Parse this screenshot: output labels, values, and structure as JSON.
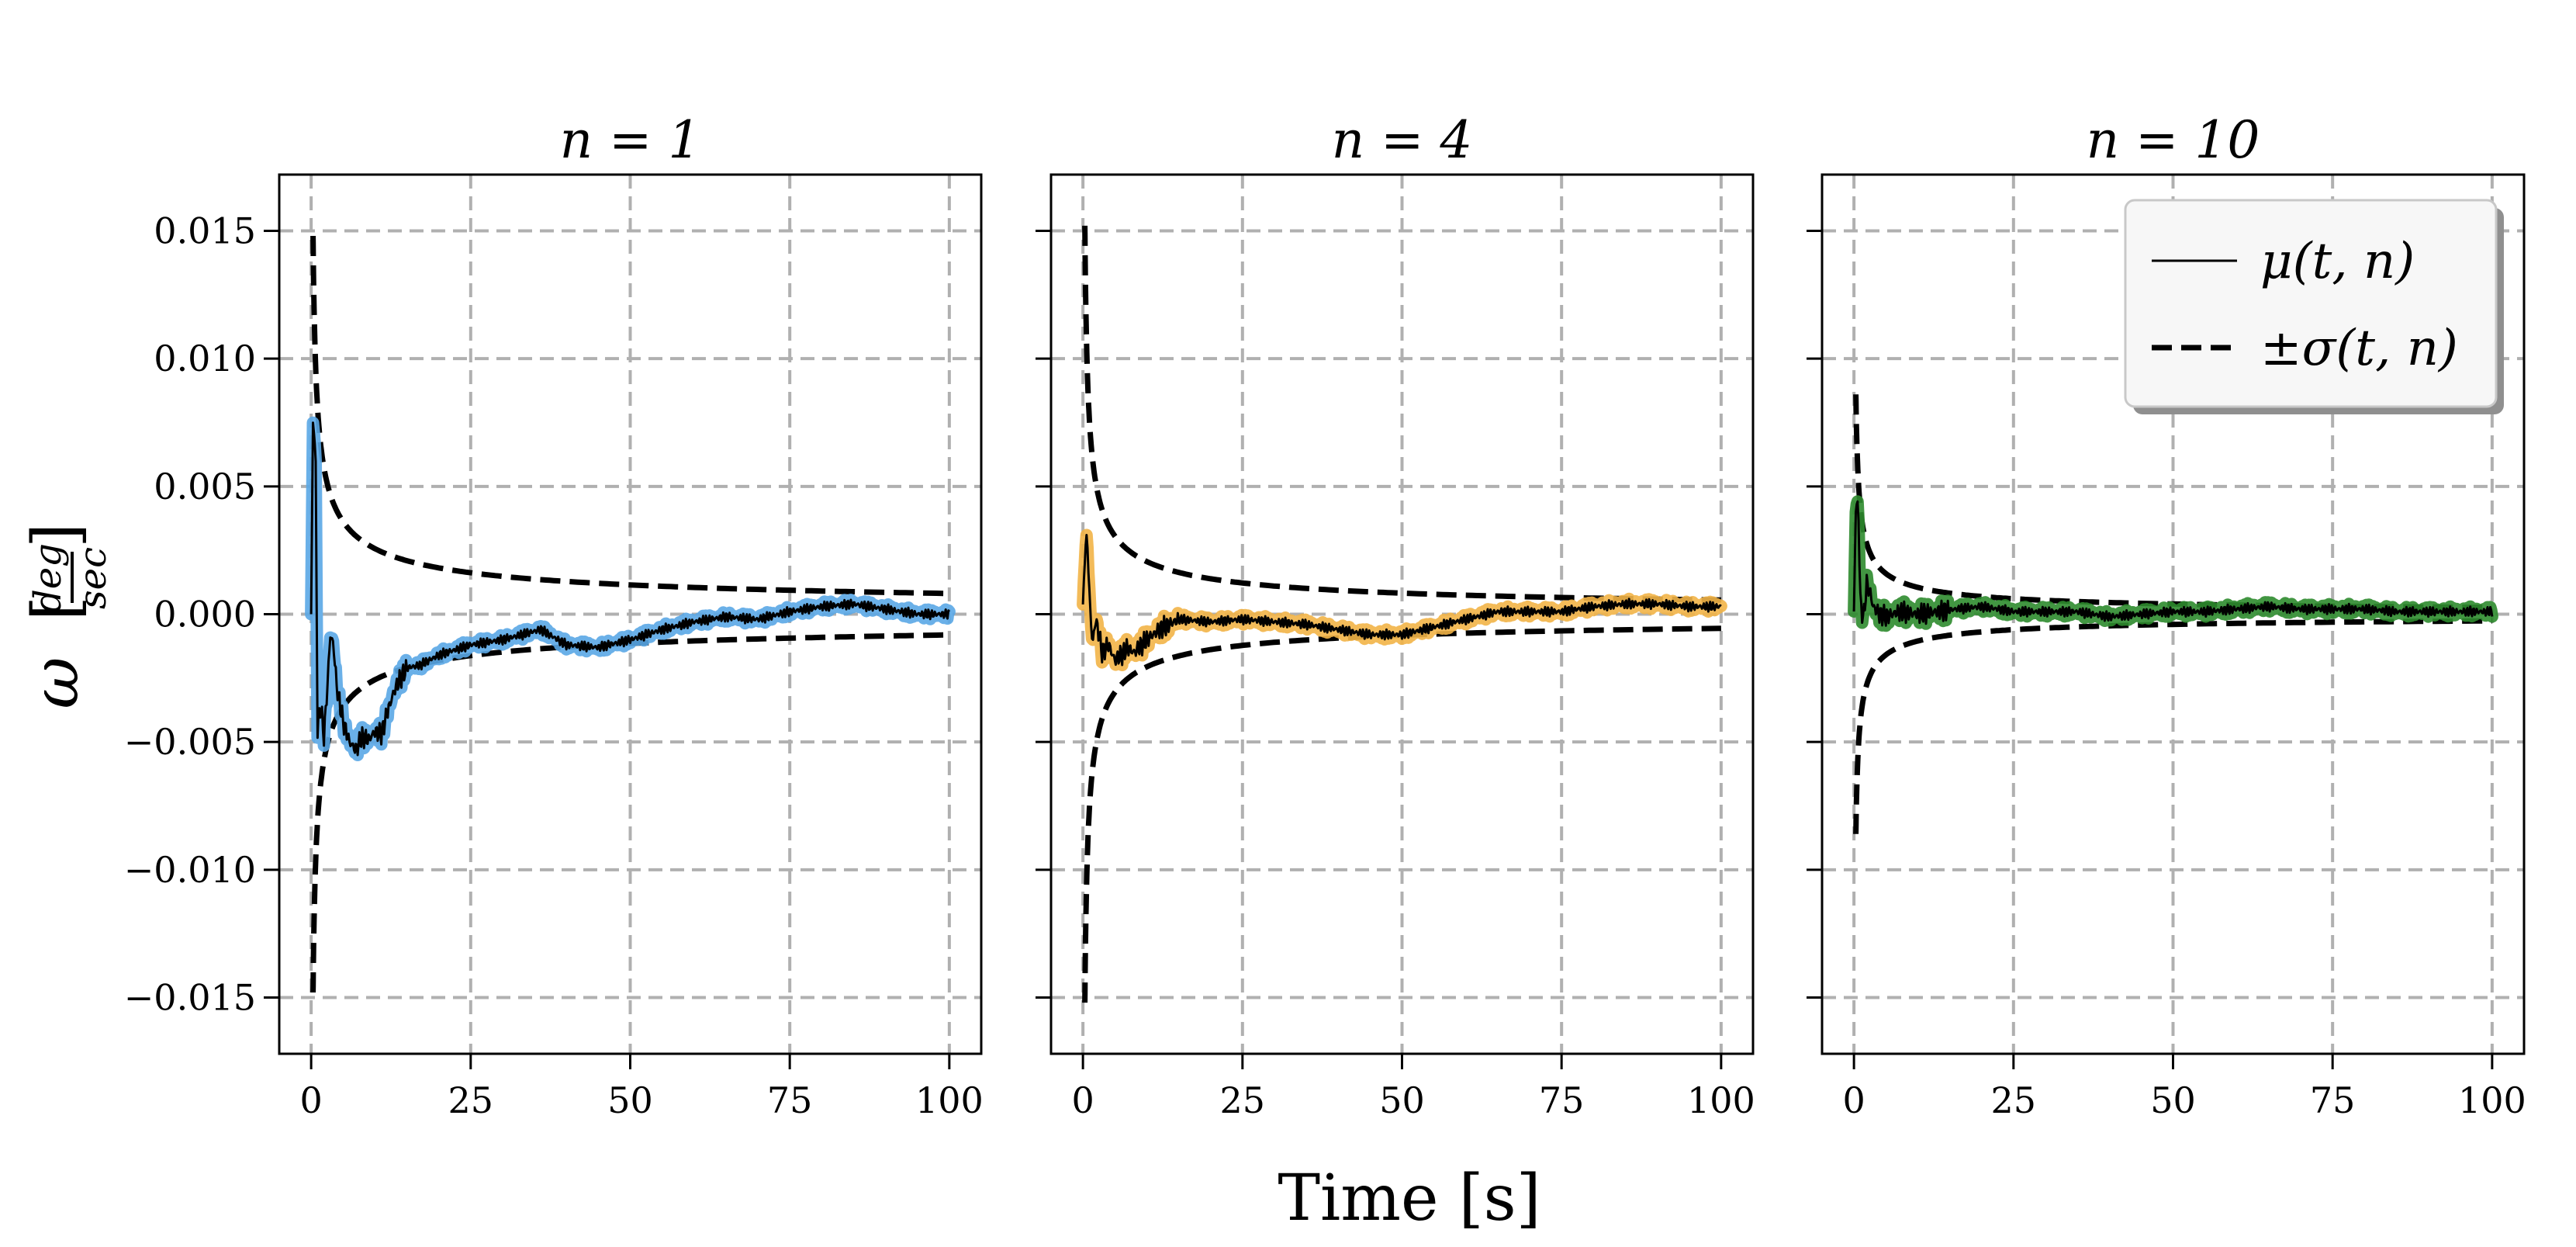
{
  "chart_data": {
    "type": "line",
    "xlabel": "Time [s]",
    "ylabel": "ω [deg/sec]",
    "ylabel_symbol": "ω",
    "ylabel_unit_numerator": "deg",
    "ylabel_unit_denominator": "sec",
    "legend": {
      "location": "top-right",
      "entries": [
        {
          "label": "μ(t, n)",
          "style": "solid",
          "color": "#000000"
        },
        {
          "label": "±σ(t, n)",
          "style": "dashed",
          "color": "#000000"
        }
      ]
    },
    "xlim": [
      -5,
      105
    ],
    "ylim": [
      -0.0172,
      0.0172
    ],
    "xticks": [
      0,
      25,
      50,
      75,
      100
    ],
    "xtick_labels": [
      "0",
      "25",
      "50",
      "75",
      "100"
    ],
    "yticks": [
      0.015,
      0.01,
      0.005,
      0.0,
      -0.005,
      -0.01,
      -0.015
    ],
    "ytick_labels": [
      "0.015",
      "0.010",
      "0.005",
      "0.000",
      "−0.005",
      "−0.010",
      "−0.015"
    ],
    "grid": true,
    "panels": [
      {
        "title": "n = 1",
        "band_color": "#5aa7e6",
        "sigma_scale": 0.0148,
        "sigma_power": 0.5,
        "mean": [
          [
            0,
            0.0
          ],
          [
            0.3,
            0.0078
          ],
          [
            0.7,
            0.0062
          ],
          [
            1.0,
            -0.0045
          ],
          [
            1.5,
            -0.0035
          ],
          [
            2.0,
            -0.0048
          ],
          [
            2.5,
            -0.003
          ],
          [
            3.0,
            -0.0008
          ],
          [
            3.5,
            -0.0012
          ],
          [
            4.0,
            -0.0028
          ],
          [
            5.0,
            -0.0042
          ],
          [
            6.0,
            -0.005
          ],
          [
            7.0,
            -0.0053
          ],
          [
            8.0,
            -0.0048
          ],
          [
            9.0,
            -0.0049
          ],
          [
            10.0,
            -0.0046
          ],
          [
            11.0,
            -0.0047
          ],
          [
            12.0,
            -0.0038
          ],
          [
            13.0,
            -0.003
          ],
          [
            14.0,
            -0.0025
          ],
          [
            15.0,
            -0.0021
          ],
          [
            17.0,
            -0.002
          ],
          [
            20.0,
            -0.0016
          ],
          [
            25.0,
            -0.0012
          ],
          [
            30.0,
            -0.001
          ],
          [
            33.0,
            -0.0008
          ],
          [
            36.0,
            -0.0006
          ],
          [
            40.0,
            -0.0012
          ],
          [
            45.0,
            -0.0013
          ],
          [
            50.0,
            -0.001
          ],
          [
            55.0,
            -0.0006
          ],
          [
            60.0,
            -0.0003
          ],
          [
            65.0,
            -0.0001
          ],
          [
            70.0,
            -0.0002
          ],
          [
            75.0,
            0.0001
          ],
          [
            80.0,
            0.0003
          ],
          [
            85.0,
            0.0004
          ],
          [
            90.0,
            0.0002
          ],
          [
            95.0,
            0.0
          ],
          [
            100.0,
            0.0
          ]
        ]
      },
      {
        "title": "n = 4",
        "band_color": "#f2b447",
        "sigma_scale": 0.0152,
        "sigma_power": 0.57,
        "mean": [
          [
            0,
            0.0
          ],
          [
            0.3,
            0.0025
          ],
          [
            0.7,
            0.0029
          ],
          [
            1.0,
            0.0008
          ],
          [
            1.5,
            -0.0012
          ],
          [
            2.0,
            -0.0002
          ],
          [
            2.5,
            -0.0008
          ],
          [
            3.0,
            -0.0015
          ],
          [
            4.0,
            -0.0012
          ],
          [
            5.0,
            -0.0018
          ],
          [
            6.0,
            -0.0016
          ],
          [
            7.0,
            -0.0013
          ],
          [
            8.0,
            -0.0015
          ],
          [
            10.0,
            -0.001
          ],
          [
            12.0,
            -0.0006
          ],
          [
            15.0,
            -0.0002
          ],
          [
            20.0,
            -0.0003
          ],
          [
            25.0,
            -0.0002
          ],
          [
            30.0,
            -0.0003
          ],
          [
            35.0,
            -0.0004
          ],
          [
            40.0,
            -0.0006
          ],
          [
            45.0,
            -0.0008
          ],
          [
            50.0,
            -0.0008
          ],
          [
            55.0,
            -0.0005
          ],
          [
            60.0,
            -0.0002
          ],
          [
            65.0,
            0.0001
          ],
          [
            70.0,
            0.0001
          ],
          [
            75.0,
            0.0001
          ],
          [
            80.0,
            0.0003
          ],
          [
            85.0,
            0.0004
          ],
          [
            90.0,
            0.0004
          ],
          [
            95.0,
            0.0003
          ],
          [
            100.0,
            0.0003
          ]
        ]
      },
      {
        "title": "n = 10",
        "band_color": "#2e8b2e",
        "sigma_scale": 0.0086,
        "sigma_power": 0.6,
        "mean": [
          [
            0,
            0.0
          ],
          [
            0.3,
            0.0044
          ],
          [
            0.7,
            0.004
          ],
          [
            1.0,
            0.0005
          ],
          [
            1.5,
            -0.0002
          ],
          [
            2.0,
            0.0012
          ],
          [
            2.5,
            0.0009
          ],
          [
            3.0,
            0.0003
          ],
          [
            4.0,
            0.0
          ],
          [
            5.0,
            -0.0001
          ],
          [
            7.0,
            0.0001
          ],
          [
            10.0,
            0.0
          ],
          [
            13.0,
            0.0001
          ],
          [
            16.0,
            0.0002
          ],
          [
            20.0,
            0.0003
          ],
          [
            25.0,
            0.0001
          ],
          [
            30.0,
            0.0001
          ],
          [
            35.0,
            0.0001
          ],
          [
            40.0,
            -0.0001
          ],
          [
            45.0,
            0.0
          ],
          [
            50.0,
            0.0001
          ],
          [
            55.0,
            0.0001
          ],
          [
            60.0,
            0.0002
          ],
          [
            65.0,
            0.0003
          ],
          [
            70.0,
            0.0002
          ],
          [
            75.0,
            0.0002
          ],
          [
            80.0,
            0.0002
          ],
          [
            85.0,
            0.0001
          ],
          [
            90.0,
            0.0001
          ],
          [
            95.0,
            0.0001
          ],
          [
            100.0,
            0.0001
          ]
        ]
      }
    ]
  }
}
